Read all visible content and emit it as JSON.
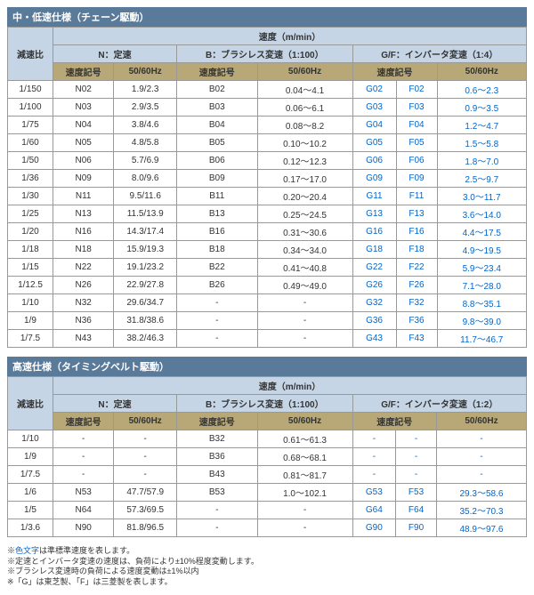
{
  "table1": {
    "title": "中・低速仕様（チェーン駆動）",
    "header1": "速度（m/min）",
    "ratioLabel": "減速比",
    "groups": [
      "N：定速",
      "B：ブラシレス変速（1:100）",
      "G/F：インバータ変速（1:4）"
    ],
    "subs": [
      "速度記号",
      "50/60Hz",
      "速度記号",
      "50/60Hz",
      "速度記号",
      "50/60Hz"
    ],
    "rows": [
      {
        "r": "1/150",
        "c": [
          "N02",
          "1.9/2.3",
          "B02",
          "0.04～4.1",
          "G02",
          "F02",
          "0.6～2.3"
        ]
      },
      {
        "r": "1/100",
        "c": [
          "N03",
          "2.9/3.5",
          "B03",
          "0.06～6.1",
          "G03",
          "F03",
          "0.9～3.5"
        ]
      },
      {
        "r": "1/75",
        "c": [
          "N04",
          "3.8/4.6",
          "B04",
          "0.08～8.2",
          "G04",
          "F04",
          "1.2～4.7"
        ]
      },
      {
        "r": "1/60",
        "c": [
          "N05",
          "4.8/5.8",
          "B05",
          "0.10～10.2",
          "G05",
          "F05",
          "1.5～5.8"
        ]
      },
      {
        "r": "1/50",
        "c": [
          "N06",
          "5.7/6.9",
          "B06",
          "0.12～12.3",
          "G06",
          "F06",
          "1.8～7.0"
        ]
      },
      {
        "r": "1/36",
        "c": [
          "N09",
          "8.0/9.6",
          "B09",
          "0.17～17.0",
          "G09",
          "F09",
          "2.5～9.7"
        ]
      },
      {
        "r": "1/30",
        "c": [
          "N11",
          "9.5/11.6",
          "B11",
          "0.20～20.4",
          "G11",
          "F11",
          "3.0～11.7"
        ]
      },
      {
        "r": "1/25",
        "c": [
          "N13",
          "11.5/13.9",
          "B13",
          "0.25～24.5",
          "G13",
          "F13",
          "3.6～14.0"
        ]
      },
      {
        "r": "1/20",
        "c": [
          "N16",
          "14.3/17.4",
          "B16",
          "0.31～30.6",
          "G16",
          "F16",
          "4.4～17.5"
        ]
      },
      {
        "r": "1/18",
        "c": [
          "N18",
          "15.9/19.3",
          "B18",
          "0.34～34.0",
          "G18",
          "F18",
          "4.9～19.5"
        ]
      },
      {
        "r": "1/15",
        "c": [
          "N22",
          "19.1/23.2",
          "B22",
          "0.41～40.8",
          "G22",
          "F22",
          "5.9～23.4"
        ]
      },
      {
        "r": "1/12.5",
        "c": [
          "N26",
          "22.9/27.8",
          "B26",
          "0.49～49.0",
          "G26",
          "F26",
          "7.1～28.0"
        ]
      },
      {
        "r": "1/10",
        "c": [
          "N32",
          "29.6/34.7",
          "-",
          "-",
          "G32",
          "F32",
          "8.8～35.1"
        ]
      },
      {
        "r": "1/9",
        "c": [
          "N36",
          "31.8/38.6",
          "-",
          "-",
          "G36",
          "F36",
          "9.8～39.0"
        ]
      },
      {
        "r": "1/7.5",
        "c": [
          "N43",
          "38.2/46.3",
          "-",
          "-",
          "G43",
          "F43",
          "11.7～46.7"
        ]
      }
    ]
  },
  "table2": {
    "title": "高速仕様（タイミングベルト駆動）",
    "header1": "速度（m/min）",
    "ratioLabel": "減速比",
    "groups": [
      "N：定速",
      "B：ブラシレス変速（1:100）",
      "G/F：インバータ変速（1:2）"
    ],
    "subs": [
      "速度記号",
      "50/60Hz",
      "速度記号",
      "50/60Hz",
      "速度記号",
      "50/60Hz"
    ],
    "rows": [
      {
        "r": "1/10",
        "c": [
          "-",
          "-",
          "B32",
          "0.61～61.3",
          "-",
          "-",
          "-"
        ]
      },
      {
        "r": "1/9",
        "c": [
          "-",
          "-",
          "B36",
          "0.68～68.1",
          "-",
          "-",
          "-"
        ]
      },
      {
        "r": "1/7.5",
        "c": [
          "-",
          "-",
          "B43",
          "0.81～81.7",
          "-",
          "-",
          "-"
        ]
      },
      {
        "r": "1/6",
        "c": [
          "N53",
          "47.7/57.9",
          "B53",
          "1.0～102.1",
          "G53",
          "F53",
          "29.3～58.6"
        ]
      },
      {
        "r": "1/5",
        "c": [
          "N64",
          "57.3/69.5",
          "-",
          "-",
          "G64",
          "F64",
          "35.2～70.3"
        ]
      },
      {
        "r": "1/3.6",
        "c": [
          "N90",
          "81.8/96.5",
          "-",
          "-",
          "G90",
          "F90",
          "48.9～97.6"
        ]
      }
    ]
  },
  "notes": {
    "n1a": "※",
    "n1b": "色文字",
    "n1c": "は準標準速度を表します。",
    "n2": "※定速とインバータ変速の速度は、負荷により±10%程度変動します。",
    "n3": "※ブラシレス変速時の負荷による速度変動は±1%以内",
    "n4": "※「G」は東芝製、「F」は三菱製を表します。"
  }
}
